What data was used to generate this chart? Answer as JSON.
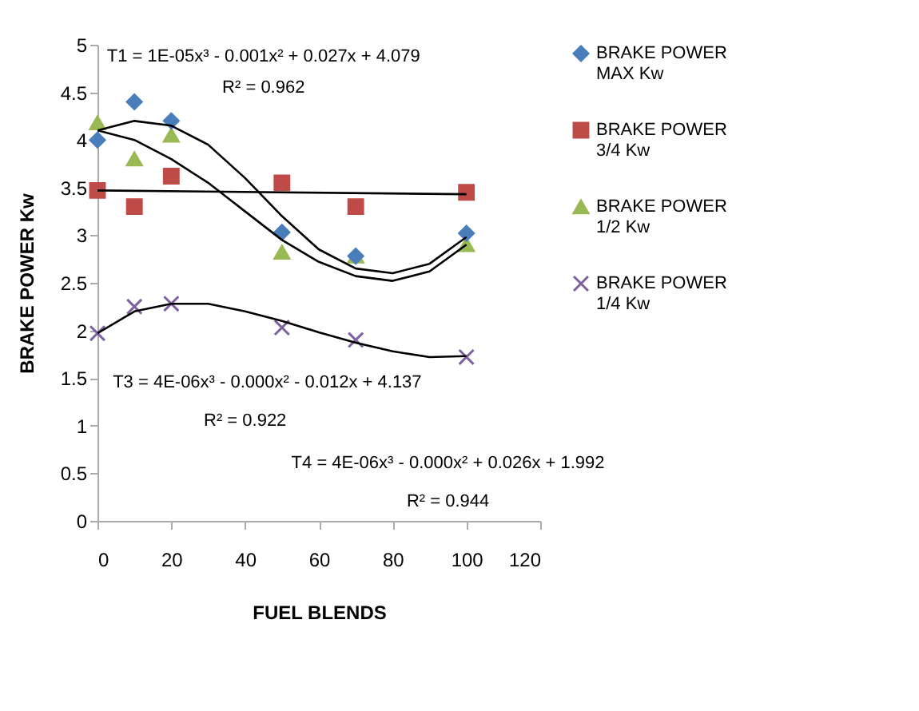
{
  "chart_data": {
    "type": "scatter",
    "xlabel": "FUEL BLENDS",
    "ylabel": "BRAKE POWER Kw",
    "x": [
      0,
      10,
      20,
      50,
      70,
      100
    ],
    "series": [
      {
        "name": "BRAKE POWER MAX Kw",
        "color": "#4a7ebb",
        "marker": "diamond",
        "values": [
          4.0,
          4.4,
          4.2,
          3.03,
          2.78,
          3.02
        ]
      },
      {
        "name": "BRAKE POWER 3/4 Kw",
        "color": "#be4b48",
        "marker": "square",
        "values": [
          3.47,
          3.3,
          3.62,
          3.55,
          3.3,
          3.45
        ]
      },
      {
        "name": "BRAKE POWER 1/2 Kw",
        "color": "#98b954",
        "marker": "triangle",
        "values": [
          4.18,
          3.8,
          4.05,
          2.82,
          2.78,
          2.9
        ]
      },
      {
        "name": "BRAKE POWER 1/4 Kw",
        "color": "#7d60a0",
        "marker": "cross",
        "values": [
          1.97,
          2.25,
          2.28,
          2.03,
          1.9,
          1.72
        ]
      },
      {
        "type": "line",
        "color": "#000000",
        "x": [
          0,
          10,
          20,
          30,
          40,
          50,
          60,
          70,
          80,
          90,
          100
        ],
        "values": [
          4.1,
          4.2,
          4.15,
          3.95,
          3.6,
          3.2,
          2.85,
          2.65,
          2.6,
          2.7,
          2.98
        ]
      },
      {
        "type": "line",
        "color": "#000000",
        "x": [
          0,
          100
        ],
        "values": [
          3.47,
          3.43
        ]
      },
      {
        "type": "line",
        "color": "#000000",
        "x": [
          0,
          10,
          20,
          30,
          40,
          50,
          60,
          70,
          80,
          90,
          100
        ],
        "values": [
          4.1,
          4.0,
          3.8,
          3.55,
          3.25,
          2.95,
          2.72,
          2.57,
          2.52,
          2.62,
          2.9
        ]
      },
      {
        "type": "line",
        "color": "#000000",
        "x": [
          0,
          10,
          20,
          30,
          40,
          50,
          60,
          70,
          80,
          90,
          100
        ],
        "values": [
          1.97,
          2.2,
          2.28,
          2.28,
          2.2,
          2.1,
          1.98,
          1.87,
          1.78,
          1.72,
          1.73
        ]
      }
    ],
    "annotations": [
      "T1 = 1E-05x³ - 0.001x² + 0.027x + 4.079",
      "R² = 0.962",
      "T3 = 4E-06x³ - 0.000x² - 0.012x + 4.137",
      "R² = 0.922",
      "T4 = 4E-06x³ - 0.000x² + 0.026x + 1.992",
      "R² = 0.944"
    ],
    "xlim": [
      0,
      120
    ],
    "xticks": [
      0,
      20,
      40,
      60,
      80,
      100,
      120
    ],
    "ylim": [
      0,
      5
    ],
    "yticks": [
      0,
      0.5,
      1,
      1.5,
      2,
      2.5,
      3,
      3.5,
      4,
      4.5,
      5
    ],
    "grid": false,
    "legend": "right"
  }
}
